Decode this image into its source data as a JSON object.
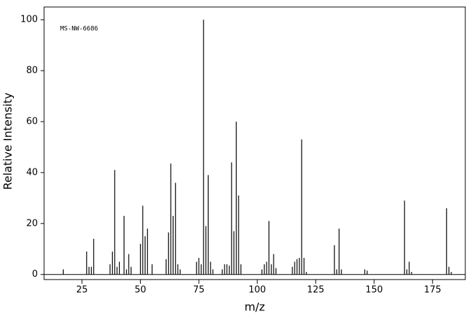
{
  "chart_data": {
    "type": "bar",
    "annotation": "MS-NW-6686",
    "x_label": "m/z",
    "y_label": "Relative Intensity",
    "color": "#000000",
    "x": [
      17,
      27,
      28,
      29,
      30,
      37,
      38,
      39,
      40,
      41,
      43,
      44,
      45,
      46,
      50,
      51,
      52,
      53,
      55,
      61,
      62,
      63,
      64,
      65,
      66,
      67,
      74,
      75,
      76,
      77,
      78,
      79,
      80,
      81,
      85,
      86,
      87,
      88,
      89,
      90,
      91,
      92,
      93,
      102,
      103,
      104,
      105,
      106,
      107,
      108,
      115,
      116,
      117,
      118,
      119,
      120,
      121,
      133,
      134,
      135,
      136,
      146,
      147,
      163,
      164,
      165,
      166,
      181,
      182,
      183
    ],
    "values": [
      2,
      9,
      3,
      3,
      14,
      4,
      9,
      41,
      3,
      5,
      23,
      2,
      8,
      3,
      12,
      27,
      15,
      18,
      4,
      6,
      16.5,
      43.5,
      23,
      36,
      4,
      2,
      5,
      6.5,
      4,
      100,
      19,
      39,
      5,
      2,
      2,
      4,
      4,
      3.5,
      44,
      17,
      60,
      31,
      4,
      2,
      4,
      5,
      21,
      4,
      8,
      2.5,
      3,
      5,
      6,
      6.5,
      53,
      6.5,
      1,
      11.5,
      2,
      18,
      2,
      2,
      1.5,
      29,
      2,
      5,
      1,
      26,
      3,
      1
    ],
    "xlim": [
      8.8,
      189
    ],
    "ylim": [
      -2,
      105
    ],
    "xticks": [
      25,
      50,
      75,
      100,
      125,
      150,
      175
    ],
    "yticks": [
      0,
      20,
      40,
      60,
      80,
      100
    ]
  }
}
